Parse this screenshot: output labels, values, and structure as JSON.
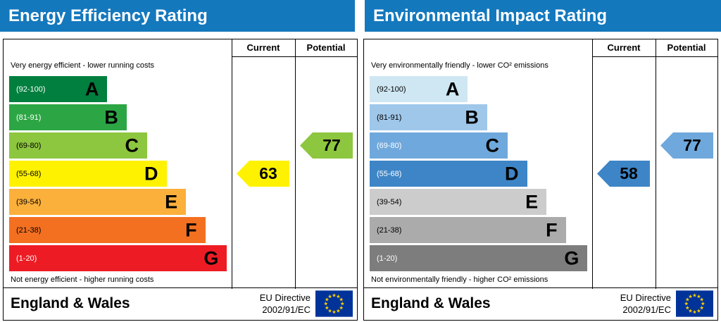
{
  "chart_data": [
    {
      "type": "bar",
      "title": "Energy Efficiency Rating",
      "header_bg": "#1478bd",
      "columns": [
        "Current",
        "Potential"
      ],
      "top_caption": "Very energy efficient - lower running costs",
      "bottom_caption": "Not energy efficient - higher running costs",
      "bands": [
        {
          "letter": "A",
          "range": "(92-100)",
          "min": 92,
          "max": 100,
          "color": "#007f3e",
          "range_text_color": "#ffffff",
          "width_pct": 43
        },
        {
          "letter": "B",
          "range": "(81-91)",
          "min": 81,
          "max": 91,
          "color": "#2ca644",
          "range_text_color": "#ffffff",
          "width_pct": 51.5
        },
        {
          "letter": "C",
          "range": "(69-80)",
          "min": 69,
          "max": 80,
          "color": "#8dc63f",
          "range_text_color": "#000000",
          "width_pct": 60.5
        },
        {
          "letter": "D",
          "range": "(55-68)",
          "min": 55,
          "max": 68,
          "color": "#fff200",
          "range_text_color": "#000000",
          "width_pct": 69
        },
        {
          "letter": "E",
          "range": "(39-54)",
          "min": 39,
          "max": 54,
          "color": "#fbb03b",
          "range_text_color": "#000000",
          "width_pct": 77.5
        },
        {
          "letter": "F",
          "range": "(21-38)",
          "min": 21,
          "max": 38,
          "color": "#f37021",
          "range_text_color": "#000000",
          "width_pct": 86
        },
        {
          "letter": "G",
          "range": "(1-20)",
          "min": 1,
          "max": 20,
          "color": "#ed1c24",
          "range_text_color": "#ffffff",
          "width_pct": 95.5
        }
      ],
      "ratings": {
        "current": {
          "value": 63,
          "band": "D",
          "color": "#fff200",
          "text_color": "#000000"
        },
        "potential": {
          "value": 77,
          "band": "C",
          "color": "#8dc63f",
          "text_color": "#000000"
        }
      },
      "footer": {
        "region": "England & Wales",
        "directive_lines": [
          "EU Directive",
          "2002/91/EC"
        ]
      }
    },
    {
      "type": "bar",
      "title": "Environmental Impact Rating",
      "header_bg": "#1478bd",
      "columns": [
        "Current",
        "Potential"
      ],
      "top_caption": "Very environmentally friendly - lower CO² emissions",
      "bottom_caption": "Not environmentally friendly - higher CO² emissions",
      "bands": [
        {
          "letter": "A",
          "range": "(92-100)",
          "min": 92,
          "max": 100,
          "color": "#cfe7f3",
          "range_text_color": "#000000",
          "width_pct": 43
        },
        {
          "letter": "B",
          "range": "(81-91)",
          "min": 81,
          "max": 91,
          "color": "#9fc7ea",
          "range_text_color": "#000000",
          "width_pct": 51.5
        },
        {
          "letter": "C",
          "range": "(69-80)",
          "min": 69,
          "max": 80,
          "color": "#6fa8dc",
          "range_text_color": "#ffffff",
          "width_pct": 60.5
        },
        {
          "letter": "D",
          "range": "(55-68)",
          "min": 55,
          "max": 68,
          "color": "#3d85c6",
          "range_text_color": "#ffffff",
          "width_pct": 69
        },
        {
          "letter": "E",
          "range": "(39-54)",
          "min": 39,
          "max": 54,
          "color": "#cccccc",
          "range_text_color": "#000000",
          "width_pct": 77.5
        },
        {
          "letter": "F",
          "range": "(21-38)",
          "min": 21,
          "max": 38,
          "color": "#ababab",
          "range_text_color": "#000000",
          "width_pct": 86
        },
        {
          "letter": "G",
          "range": "(1-20)",
          "min": 1,
          "max": 20,
          "color": "#7d7d7d",
          "range_text_color": "#ffffff",
          "width_pct": 95.5
        }
      ],
      "ratings": {
        "current": {
          "value": 58,
          "band": "D",
          "color": "#3d85c6",
          "text_color": "#000000"
        },
        "potential": {
          "value": 77,
          "band": "C",
          "color": "#6fa8dc",
          "text_color": "#000000"
        }
      },
      "footer": {
        "region": "England & Wales",
        "directive_lines": [
          "EU Directive",
          "2002/91/EC"
        ]
      }
    }
  ],
  "flag_colors": {
    "background": "#003399",
    "stars": "#ffcc00"
  }
}
